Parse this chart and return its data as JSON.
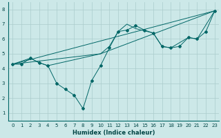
{
  "xlabel": "Humidex (Indice chaleur)",
  "background_color": "#cce8e8",
  "grid_color": "#aacccc",
  "line_color": "#006666",
  "xlim": [
    -0.5,
    23.5
  ],
  "ylim": [
    0.5,
    8.5
  ],
  "xticks": [
    0,
    1,
    2,
    3,
    4,
    5,
    6,
    7,
    8,
    9,
    10,
    11,
    12,
    13,
    14,
    15,
    16,
    17,
    18,
    19,
    20,
    21,
    22,
    23
  ],
  "yticks": [
    1,
    2,
    3,
    4,
    5,
    6,
    7,
    8
  ],
  "line1_x": [
    0,
    1,
    2,
    3,
    4,
    5,
    6,
    7,
    8,
    9,
    10,
    11,
    12,
    13,
    14,
    15,
    16,
    17,
    18,
    19,
    20,
    21,
    22,
    23
  ],
  "line1_y": [
    4.3,
    4.3,
    4.7,
    4.4,
    4.2,
    3.0,
    2.6,
    2.2,
    1.3,
    3.2,
    4.2,
    5.4,
    6.5,
    6.6,
    6.9,
    6.6,
    6.4,
    5.5,
    5.4,
    5.5,
    6.1,
    6.0,
    6.5,
    7.9
  ],
  "line2_x": [
    0,
    2,
    3,
    4,
    10,
    11,
    12,
    13,
    14,
    16,
    17,
    18,
    20,
    21,
    23
  ],
  "line2_y": [
    4.3,
    4.7,
    4.4,
    4.2,
    5.0,
    5.5,
    6.5,
    7.0,
    6.7,
    6.4,
    5.5,
    5.4,
    6.1,
    6.0,
    7.9
  ],
  "line3_x": [
    0,
    23
  ],
  "line3_y": [
    4.3,
    7.9
  ],
  "line4_x": [
    0,
    10,
    23
  ],
  "line4_y": [
    4.3,
    5.0,
    7.9
  ]
}
